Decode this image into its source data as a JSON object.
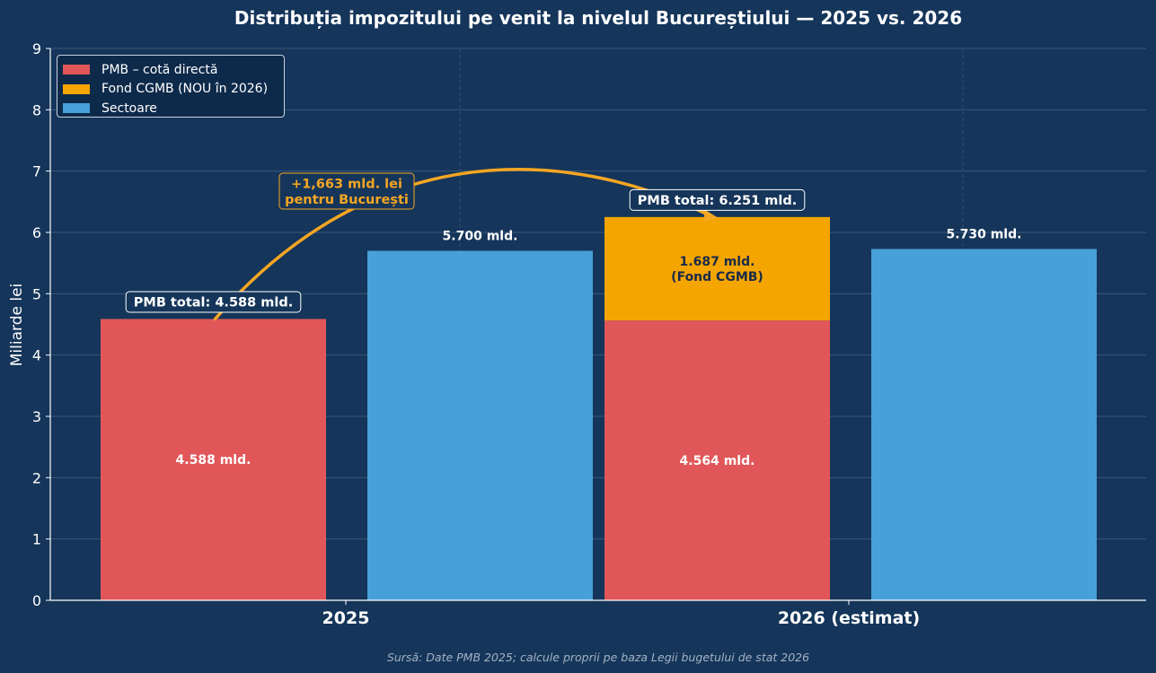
{
  "chart_data": {
    "type": "bar",
    "title": "Distribuția impozitului pe venit la nivelul Bucureștiului — 2025 vs. 2026",
    "ylabel": "Miliarde lei",
    "xlabel": "",
    "ylim": [
      0,
      9
    ],
    "yticks": [
      "0",
      "1",
      "2",
      "3",
      "4",
      "5",
      "6",
      "7",
      "8",
      "9"
    ],
    "categories": [
      "2025",
      "2026 (estimat)"
    ],
    "series": [
      {
        "name": "PMB – cotă directă",
        "color": "#e15759",
        "values": [
          4.588,
          4.564
        ],
        "labels": [
          "4.588 mld.",
          "4.564 mld."
        ]
      },
      {
        "name": "Fond CGMB (NOU în 2026)",
        "color": "#f5a500",
        "values": [
          0,
          1.687
        ],
        "labels": [
          "",
          "1.687 mld.\n(Fond CGMB)"
        ]
      },
      {
        "name": "Sectoare",
        "color": "#47a0d8",
        "values": [
          5.7,
          5.73
        ],
        "labels": [
          "5.700 mld.",
          "5.730 mld."
        ]
      }
    ],
    "totals": [
      {
        "value": 4.588,
        "label": "PMB total: 4.588 mld."
      },
      {
        "value": 6.251,
        "label": "PMB total: 6.251 mld."
      }
    ],
    "annotation": {
      "text": "+1,663 mld. lei\npentru București",
      "color": "#f5a623"
    },
    "grid": true,
    "legend_position": "top-left"
  },
  "footer": {
    "source": "Sursă: Date PMB 2025; calcule proprii pe baza Legii bugetului de stat 2026"
  }
}
